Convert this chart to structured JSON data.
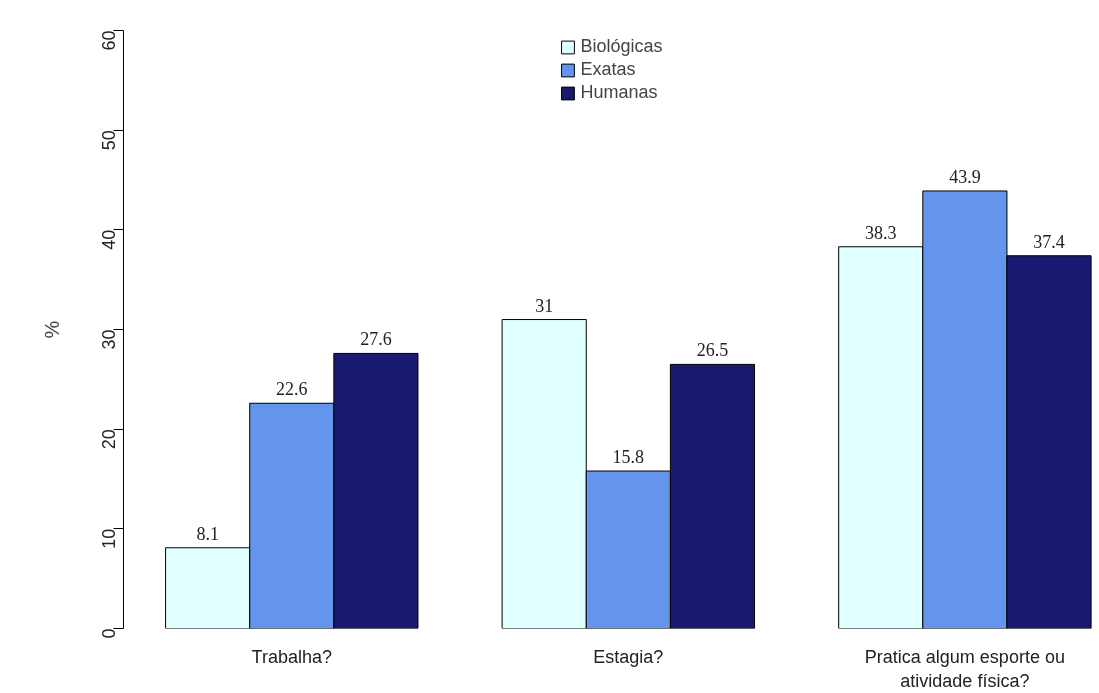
{
  "chart_data": {
    "type": "bar",
    "categories": [
      "Trabalha?",
      "Estagia?",
      "Pratica algum esporte ou atividade física?"
    ],
    "series": [
      {
        "name": "Biológicas",
        "color": "#e0ffff",
        "values": [
          8.1,
          31,
          38.3
        ]
      },
      {
        "name": "Exatas",
        "color": "#6495ed",
        "values": [
          22.6,
          15.8,
          43.9
        ]
      },
      {
        "name": "Humanas",
        "color": "#191970",
        "values": [
          27.6,
          26.5,
          37.4
        ]
      }
    ],
    "ylabel": "%",
    "ylim": [
      0,
      60
    ],
    "yticks": [
      0,
      10,
      20,
      30,
      40,
      50,
      60
    ],
    "legend": "top",
    "data_labels": true,
    "grid": false
  }
}
